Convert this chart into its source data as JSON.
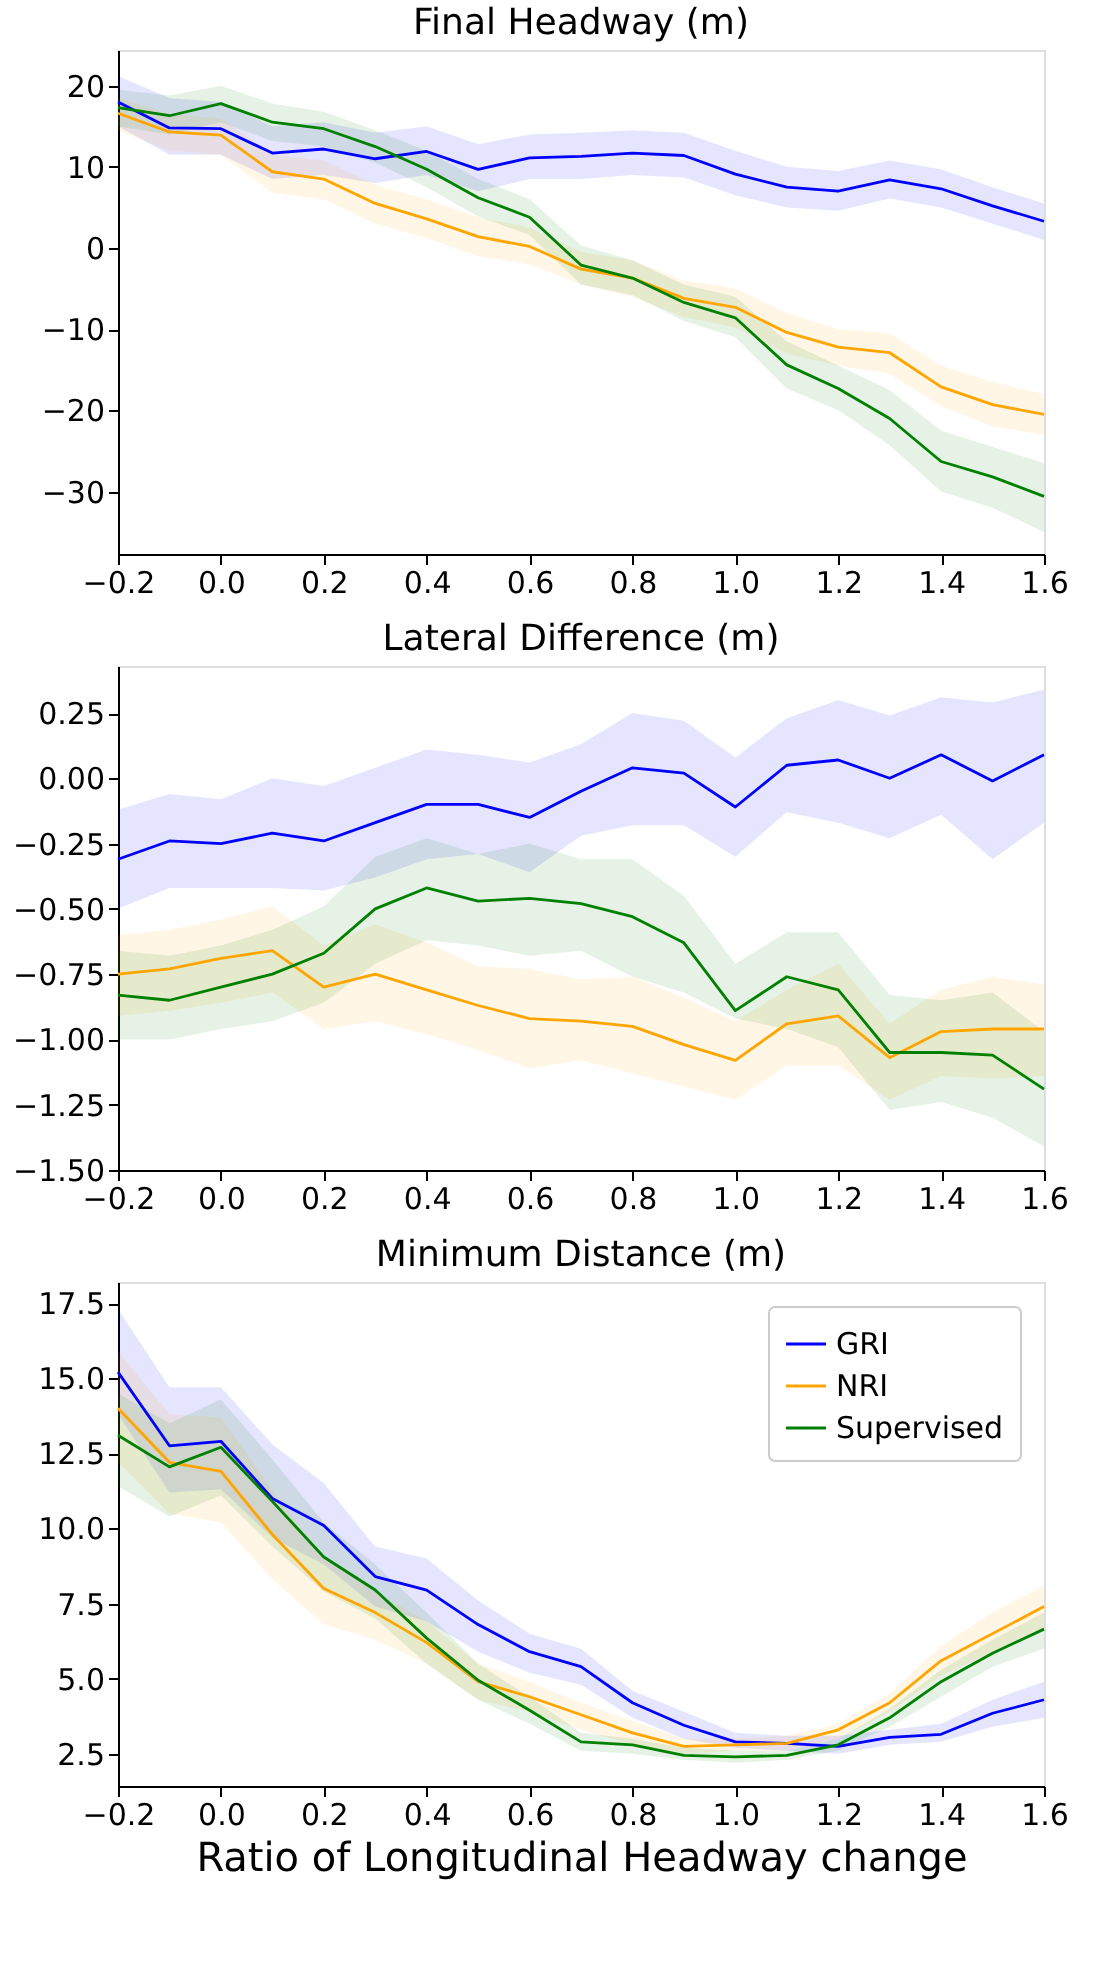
{
  "chart_data": [
    {
      "type": "line",
      "title": "Final Headway (m)",
      "x": [
        -0.2,
        -0.1,
        0,
        0.1,
        0.2,
        0.3,
        0.4,
        0.5,
        0.6,
        0.7,
        0.8,
        0.9,
        1,
        1.1,
        1.2,
        1.3,
        1.4,
        1.5,
        1.6
      ],
      "xlim": [
        -0.2,
        1.6
      ],
      "xticks": [
        {
          "value": -0.2,
          "label": "−0.2"
        },
        {
          "value": 0,
          "label": "0.0"
        },
        {
          "value": 0.2,
          "label": "0.2"
        },
        {
          "value": 0.4,
          "label": "0.4"
        },
        {
          "value": 0.6,
          "label": "0.6"
        },
        {
          "value": 0.8,
          "label": "0.8"
        },
        {
          "value": 1,
          "label": "1.0"
        },
        {
          "value": 1.2,
          "label": "1.2"
        },
        {
          "value": 1.4,
          "label": "1.4"
        },
        {
          "value": 1.6,
          "label": "1.6"
        }
      ],
      "ylim": [
        -37.7,
        24.4
      ],
      "yticks": [
        {
          "value": -30,
          "label": "−30"
        },
        {
          "value": -20,
          "label": "−20"
        },
        {
          "value": -10,
          "label": "−10"
        },
        0,
        10,
        20
      ],
      "grid": false,
      "legend": false,
      "line_style": "solid",
      "marker": "none",
      "series": [
        {
          "color": "#0000ff",
          "values": [
            18,
            14.8,
            14.7,
            11.7,
            12.2,
            11,
            11.9,
            9.7,
            11.1,
            11.3,
            11.7,
            11.4,
            9.1,
            7.5,
            7.0,
            8.4,
            7.3,
            5.2,
            3.3
          ],
          "upper": [
            21.2,
            18.5,
            18,
            15,
            15.5,
            14.2,
            15,
            12.8,
            14,
            14.2,
            14.5,
            14.2,
            12,
            10,
            9.5,
            10.8,
            9.7,
            7.5,
            5.5
          ],
          "lower": [
            15,
            11.5,
            11.5,
            8.5,
            9,
            8,
            9,
            7,
            8.5,
            8.5,
            9,
            8.7,
            6.5,
            5,
            4.6,
            6.1,
            5,
            3,
            1
          ]
        },
        {
          "color": "#ffa500",
          "values": [
            16.6,
            14.3,
            13.9,
            9.4,
            8.5,
            5.5,
            3.6,
            1.4,
            0.2,
            -2.6,
            -3.7,
            -6.2,
            -7.3,
            -10.4,
            -12.2,
            -12.9,
            -17.1,
            -19.3,
            -20.5
          ],
          "upper": [
            18.5,
            16.5,
            16,
            11.5,
            10.8,
            7.8,
            6,
            3.8,
            2.5,
            -0.5,
            -1.5,
            -4,
            -5,
            -8,
            -10,
            -10.5,
            -14.5,
            -16.5,
            -18
          ],
          "lower": [
            14.5,
            12,
            11.5,
            6.8,
            6,
            3,
            1.2,
            -1,
            -2,
            -4.5,
            -6,
            -8.5,
            -9.8,
            -13,
            -14.5,
            -15.5,
            -19.5,
            -22,
            -23
          ]
        },
        {
          "color": "#008000",
          "values": [
            17.3,
            16.3,
            17.8,
            15.5,
            14.7,
            12.5,
            9.7,
            6.2,
            3.8,
            -2.1,
            -3.7,
            -6.7,
            -8.6,
            -14.4,
            -17.3,
            -21,
            -26.3,
            -28.2,
            -30.6
          ],
          "upper": [
            19.5,
            18.8,
            20,
            17.8,
            16.8,
            14.5,
            12,
            8.5,
            6,
            0.3,
            -1.5,
            -4.5,
            -6,
            -11.5,
            -14.5,
            -17.5,
            -22.5,
            -24.5,
            -26.5
          ],
          "lower": [
            15,
            14,
            15.5,
            13.2,
            12.5,
            10.5,
            7.5,
            3.9,
            1.6,
            -4.5,
            -5.8,
            -9,
            -11,
            -17.3,
            -20,
            -24.3,
            -30,
            -32,
            -35
          ]
        }
      ]
    },
    {
      "type": "line",
      "title": "Lateral Difference (m)",
      "x": [
        -0.2,
        -0.1,
        0,
        0.1,
        0.2,
        0.3,
        0.4,
        0.5,
        0.6,
        0.7,
        0.8,
        0.9,
        1,
        1.1,
        1.2,
        1.3,
        1.4,
        1.5,
        1.6
      ],
      "xlim": [
        -0.2,
        1.6
      ],
      "xticks": [
        {
          "value": -0.2,
          "label": "−0.2"
        },
        {
          "value": 0,
          "label": "0.0"
        },
        {
          "value": 0.2,
          "label": "0.2"
        },
        {
          "value": 0.4,
          "label": "0.4"
        },
        {
          "value": 0.6,
          "label": "0.6"
        },
        {
          "value": 0.8,
          "label": "0.8"
        },
        {
          "value": 1,
          "label": "1.0"
        },
        {
          "value": 1.2,
          "label": "1.2"
        },
        {
          "value": 1.4,
          "label": "1.4"
        },
        {
          "value": 1.6,
          "label": "1.6"
        }
      ],
      "ylim": [
        -1.5,
        0.43
      ],
      "yticks": [
        {
          "value": -1.5,
          "label": "−1.50"
        },
        {
          "value": -1.25,
          "label": "−1.25"
        },
        {
          "value": -1,
          "label": "−1.00"
        },
        {
          "value": -0.75,
          "label": "−0.75"
        },
        {
          "value": -0.5,
          "label": "−0.50"
        },
        {
          "value": -0.25,
          "label": "−0.25"
        },
        {
          "value": 0,
          "label": "0.00"
        },
        0.25
      ],
      "grid": false,
      "legend": false,
      "line_style": "solid",
      "marker": "none",
      "series": [
        {
          "color": "#0000ff",
          "values": [
            -0.31,
            -0.24,
            -0.25,
            -0.21,
            -0.24,
            -0.17,
            -0.1,
            -0.1,
            -0.15,
            -0.05,
            0.04,
            0.02,
            -0.11,
            0.05,
            0.07,
            0.0,
            0.09,
            -0.01,
            0.09
          ],
          "upper": [
            -0.12,
            -0.06,
            -0.08,
            0.0,
            -0.03,
            0.04,
            0.11,
            0.09,
            0.06,
            0.13,
            0.25,
            0.22,
            0.08,
            0.23,
            0.3,
            0.24,
            0.31,
            0.29,
            0.34
          ],
          "lower": [
            -0.5,
            -0.42,
            -0.42,
            -0.42,
            -0.43,
            -0.38,
            -0.31,
            -0.29,
            -0.36,
            -0.22,
            -0.18,
            -0.18,
            -0.3,
            -0.13,
            -0.17,
            -0.23,
            -0.14,
            -0.31,
            -0.17
          ]
        },
        {
          "color": "#ffa500",
          "values": [
            -0.75,
            -0.73,
            -0.69,
            -0.66,
            -0.8,
            -0.75,
            -0.81,
            -0.87,
            -0.92,
            -0.93,
            -0.95,
            -1.02,
            -1.08,
            -0.94,
            -0.91,
            -1.07,
            -0.97,
            -0.96,
            -0.96
          ],
          "upper": [
            -0.6,
            -0.58,
            -0.54,
            -0.49,
            -0.64,
            -0.56,
            -0.63,
            -0.72,
            -0.73,
            -0.77,
            -0.76,
            -0.84,
            -0.93,
            -0.81,
            -0.71,
            -0.94,
            -0.81,
            -0.76,
            -0.79
          ],
          "lower": [
            -0.91,
            -0.89,
            -0.86,
            -0.82,
            -0.96,
            -0.93,
            -0.98,
            -1.04,
            -1.11,
            -1.08,
            -1.13,
            -1.18,
            -1.23,
            -1.1,
            -1.1,
            -1.23,
            -1.14,
            -1.15,
            -1.14
          ]
        },
        {
          "color": "#008000",
          "values": [
            -0.83,
            -0.85,
            -0.8,
            -0.75,
            -0.67,
            -0.5,
            -0.42,
            -0.47,
            -0.46,
            -0.48,
            -0.53,
            -0.63,
            -0.89,
            -0.76,
            -0.81,
            -1.05,
            -1.05,
            -1.06,
            -1.19
          ],
          "upper": [
            -0.66,
            -0.68,
            -0.64,
            -0.58,
            -0.49,
            -0.3,
            -0.23,
            -0.29,
            -0.25,
            -0.31,
            -0.31,
            -0.45,
            -0.71,
            -0.59,
            -0.59,
            -0.83,
            -0.85,
            -0.82,
            -0.97
          ],
          "lower": [
            -1.0,
            -1.0,
            -0.96,
            -0.93,
            -0.86,
            -0.71,
            -0.62,
            -0.64,
            -0.68,
            -0.66,
            -0.76,
            -0.82,
            -0.92,
            -0.96,
            -1.03,
            -1.27,
            -1.24,
            -1.3,
            -1.41
          ]
        }
      ]
    },
    {
      "type": "line",
      "title": "Minimum Distance (m)",
      "xlabel": "Ratio of Longitudinal Headway change",
      "x": [
        -0.2,
        -0.1,
        0,
        0.1,
        0.2,
        0.3,
        0.4,
        0.5,
        0.6,
        0.7,
        0.8,
        0.9,
        1,
        1.1,
        1.2,
        1.3,
        1.4,
        1.5,
        1.6
      ],
      "xlim": [
        -0.2,
        1.6
      ],
      "xticks": [
        {
          "value": -0.2,
          "label": "−0.2"
        },
        {
          "value": 0,
          "label": "0.0"
        },
        {
          "value": 0.2,
          "label": "0.2"
        },
        {
          "value": 0.4,
          "label": "0.4"
        },
        {
          "value": 0.6,
          "label": "0.6"
        },
        {
          "value": 0.8,
          "label": "0.8"
        },
        {
          "value": 1,
          "label": "1.0"
        },
        {
          "value": 1.2,
          "label": "1.2"
        },
        {
          "value": 1.4,
          "label": "1.4"
        },
        {
          "value": 1.6,
          "label": "1.6"
        }
      ],
      "ylim": [
        1.43,
        18.2
      ],
      "yticks": [
        2.5,
        {
          "value": 5,
          "label": "5.0"
        },
        7.5,
        {
          "value": 10,
          "label": "10.0"
        },
        12.5,
        {
          "value": 15,
          "label": "15.0"
        },
        17.5
      ],
      "grid": false,
      "legend": "top right",
      "line_style": "solid",
      "marker": "none",
      "series": [
        {
          "name": "GRI",
          "color": "#0000ff",
          "values": [
            15.2,
            12.75,
            12.9,
            11.0,
            10.1,
            8.4,
            7.95,
            6.8,
            5.9,
            5.4,
            4.2,
            3.45,
            2.9,
            2.85,
            2.75,
            3.05,
            3.15,
            3.85,
            4.3
          ],
          "upper": [
            17.3,
            14.7,
            14.7,
            12.8,
            11.5,
            9.4,
            9.0,
            7.6,
            6.5,
            6.0,
            4.6,
            3.9,
            3.2,
            3.1,
            3.1,
            3.3,
            3.5,
            4.3,
            4.9
          ],
          "lower": [
            13.8,
            11.2,
            11.3,
            9.7,
            8.8,
            7.4,
            6.9,
            5.9,
            5.2,
            4.8,
            3.7,
            3.0,
            2.7,
            2.6,
            2.5,
            2.8,
            2.9,
            3.4,
            3.7
          ]
        },
        {
          "name": "NRI",
          "color": "#ffa500",
          "values": [
            14.0,
            12.2,
            11.9,
            9.8,
            8.0,
            7.2,
            6.2,
            4.9,
            4.4,
            3.8,
            3.2,
            2.75,
            2.8,
            2.85,
            3.3,
            4.2,
            5.6,
            6.5,
            7.4
          ],
          "upper": [
            15.9,
            13.8,
            13.7,
            11.3,
            9.0,
            7.9,
            6.9,
            5.5,
            4.9,
            4.2,
            3.6,
            3.0,
            3.0,
            3.1,
            3.5,
            4.5,
            6.1,
            7.2,
            8.1
          ],
          "lower": [
            12.2,
            10.5,
            10.2,
            8.3,
            6.8,
            6.3,
            5.5,
            4.3,
            3.9,
            3.3,
            2.8,
            2.5,
            2.6,
            2.6,
            3.0,
            3.9,
            5.1,
            5.9,
            6.7
          ]
        },
        {
          "name": "Supervised",
          "color": "#008000",
          "values": [
            13.1,
            12.05,
            12.7,
            10.9,
            9.05,
            7.95,
            6.35,
            4.95,
            3.95,
            2.9,
            2.8,
            2.45,
            2.4,
            2.45,
            2.8,
            3.7,
            4.9,
            5.85,
            6.65
          ],
          "upper": [
            14.5,
            13.5,
            14.3,
            12.3,
            10.2,
            8.8,
            7.2,
            5.5,
            4.4,
            3.2,
            3.0,
            2.7,
            2.6,
            2.6,
            3.0,
            4.0,
            5.3,
            6.3,
            7.2
          ],
          "lower": [
            11.4,
            10.4,
            11.1,
            9.4,
            7.9,
            7.0,
            5.5,
            4.3,
            3.5,
            2.6,
            2.5,
            2.3,
            2.2,
            2.3,
            2.6,
            3.4,
            4.4,
            5.4,
            6.0
          ]
        }
      ]
    }
  ]
}
